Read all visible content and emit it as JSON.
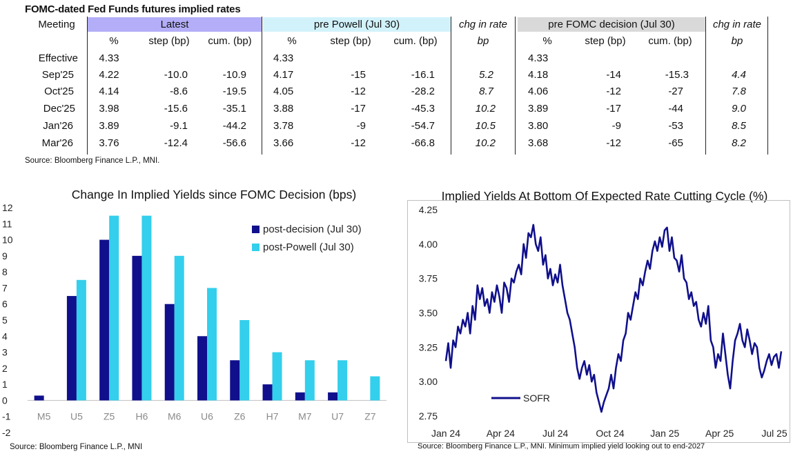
{
  "table": {
    "title": "FOMC-dated Fed Funds futures implied rates",
    "meeting_label": "Meeting",
    "groups": {
      "latest": "Latest",
      "pre_powell": "pre Powell (Jul 30)",
      "chg1": "chg in rate",
      "pre_fomc": "pre FOMC decision (Jul 30)",
      "chg2": "chg in rate"
    },
    "subheaders": {
      "pct": "%",
      "step": "step (bp)",
      "cum": "cum. (bp)",
      "bp": "bp"
    },
    "rows": [
      {
        "m": "Effective",
        "l_pct": "4.33",
        "l_step": "",
        "l_cum": "",
        "p_pct": "4.33",
        "p_step": "",
        "p_cum": "",
        "c1": "",
        "f_pct": "4.33",
        "f_step": "",
        "f_cum": "",
        "c2": ""
      },
      {
        "m": "Sep'25",
        "l_pct": "4.22",
        "l_step": "-10.0",
        "l_cum": "-10.9",
        "p_pct": "4.17",
        "p_step": "-15",
        "p_cum": "-16.1",
        "c1": "5.2",
        "f_pct": "4.18",
        "f_step": "-14",
        "f_cum": "-15.3",
        "c2": "4.4"
      },
      {
        "m": "Oct'25",
        "l_pct": "4.14",
        "l_step": "-8.6",
        "l_cum": "-19.5",
        "p_pct": "4.05",
        "p_step": "-12",
        "p_cum": "-28.2",
        "c1": "8.7",
        "f_pct": "4.06",
        "f_step": "-12",
        "f_cum": "-27",
        "c2": "7.8"
      },
      {
        "m": "Dec'25",
        "l_pct": "3.98",
        "l_step": "-15.6",
        "l_cum": "-35.1",
        "p_pct": "3.88",
        "p_step": "-17",
        "p_cum": "-45.3",
        "c1": "10.2",
        "f_pct": "3.89",
        "f_step": "-17",
        "f_cum": "-44",
        "c2": "9.0"
      },
      {
        "m": "Jan'26",
        "l_pct": "3.89",
        "l_step": "-9.1",
        "l_cum": "-44.2",
        "p_pct": "3.78",
        "p_step": "-9",
        "p_cum": "-54.7",
        "c1": "10.5",
        "f_pct": "3.80",
        "f_step": "-9",
        "f_cum": "-53",
        "c2": "8.5"
      },
      {
        "m": "Mar'26",
        "l_pct": "3.76",
        "l_step": "-12.4",
        "l_cum": "-56.6",
        "p_pct": "3.66",
        "p_step": "-12",
        "p_cum": "-66.8",
        "c1": "10.2",
        "f_pct": "3.68",
        "f_step": "-12",
        "f_cum": "-65",
        "c2": "8.2"
      }
    ],
    "source": "Source: Bloomberg Finance L.P., MNI."
  },
  "colors": {
    "latest_hdr": "#b3aef7",
    "pre_powell_hdr": "#d2f2fb",
    "pre_fomc_hdr": "#d9d9d9",
    "navy": "#10108c",
    "cyan": "#33cfec"
  },
  "chart_data": [
    {
      "type": "bar",
      "title": "Change In Implied Yields since FOMC Decision (bps)",
      "categories": [
        "M5",
        "U5",
        "Z5",
        "H6",
        "M6",
        "U6",
        "Z6",
        "H7",
        "M7",
        "U7",
        "Z7"
      ],
      "series": [
        {
          "name": "post-decision (Jul 30)",
          "values": [
            0.3,
            6.5,
            10.0,
            9.0,
            6.0,
            4.0,
            2.5,
            1.0,
            0.5,
            0.5,
            0.0
          ]
        },
        {
          "name": "post-Powell (Jul 30)",
          "values": [
            0.0,
            7.5,
            11.5,
            11.5,
            9.0,
            7.0,
            5.0,
            3.0,
            2.5,
            2.5,
            1.5
          ]
        }
      ],
      "ylim": [
        -2,
        12
      ],
      "yticks": [
        "-2",
        "-1",
        "0",
        "1",
        "2",
        "3",
        "4",
        "5",
        "6",
        "7",
        "8",
        "9",
        "10",
        "11",
        "12"
      ],
      "legend": "top-right",
      "source": "Source: Bloomberg Finance L.P., MNI"
    },
    {
      "type": "line",
      "title": "Implied Yields At Bottom Of Expected Rate Cutting Cycle (%)",
      "series": [
        {
          "name": "SOFR",
          "values": [
            3.15,
            3.28,
            3.1,
            3.3,
            3.25,
            3.4,
            3.35,
            3.45,
            3.4,
            3.5,
            3.35,
            3.55,
            3.45,
            3.7,
            3.6,
            3.68,
            3.55,
            3.6,
            3.5,
            3.65,
            3.58,
            3.7,
            3.62,
            3.5,
            3.72,
            3.68,
            3.58,
            3.75,
            3.72,
            3.8,
            3.85,
            3.78,
            4.0,
            3.9,
            4.08,
            4.05,
            4.14,
            4.0,
            3.95,
            4.05,
            3.85,
            3.92,
            3.75,
            3.82,
            3.7,
            3.78,
            3.72,
            3.85,
            3.7,
            3.6,
            3.5,
            3.45,
            3.35,
            3.25,
            3.1,
            3.02,
            3.1,
            3.15,
            3.05,
            3.12,
            3.0,
            3.05,
            2.92,
            2.85,
            2.78,
            2.85,
            2.9,
            2.95,
            3.05,
            2.95,
            3.1,
            3.2,
            3.15,
            3.3,
            3.35,
            3.5,
            3.45,
            3.55,
            3.65,
            3.6,
            3.75,
            3.7,
            3.8,
            3.88,
            3.82,
            3.95,
            4.02,
            3.95,
            4.05,
            3.98,
            4.1,
            4.12,
            3.95,
            4.05,
            3.9,
            3.88,
            3.8,
            3.92,
            3.75,
            3.72,
            3.6,
            3.65,
            3.55,
            3.58,
            3.45,
            3.4,
            3.5,
            3.42,
            3.55,
            3.3,
            3.25,
            3.1,
            3.2,
            3.15,
            3.35,
            3.2,
            3.05,
            2.95,
            3.15,
            3.3,
            3.35,
            3.42,
            3.3,
            3.25,
            3.38,
            3.3,
            3.2,
            3.28,
            3.25,
            3.1,
            3.03,
            3.08,
            3.15,
            3.2,
            3.12,
            3.18,
            3.2,
            3.1,
            3.22
          ]
        }
      ],
      "ylim": [
        2.75,
        4.25
      ],
      "yticks": [
        "2.75",
        "3.00",
        "3.25",
        "3.50",
        "3.75",
        "4.00",
        "4.25"
      ],
      "xticks": [
        "Jan 24",
        "Apr 24",
        "Jul 24",
        "Oct 24",
        "Jan 25",
        "Apr 25",
        "Jul 25"
      ],
      "legend": "bottom-left",
      "source": "Source: Bloomberg Finance L.P., MNI. Minimum implied yield looking out to end-2027"
    }
  ]
}
